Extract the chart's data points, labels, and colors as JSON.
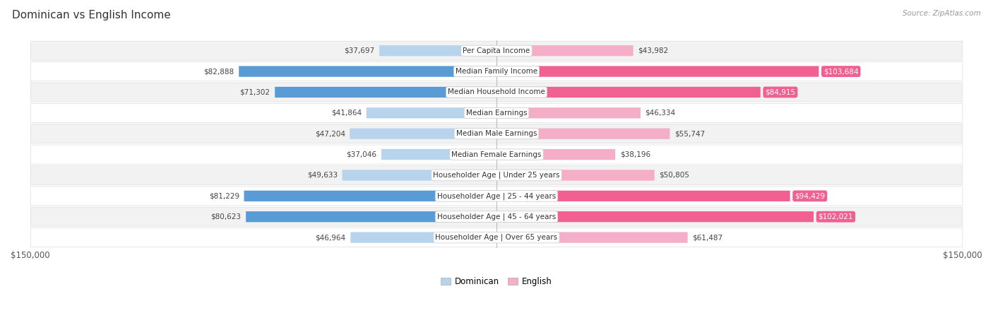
{
  "title": "Dominican vs English Income",
  "source": "Source: ZipAtlas.com",
  "categories": [
    "Per Capita Income",
    "Median Family Income",
    "Median Household Income",
    "Median Earnings",
    "Median Male Earnings",
    "Median Female Earnings",
    "Householder Age | Under 25 years",
    "Householder Age | 25 - 44 years",
    "Householder Age | 45 - 64 years",
    "Householder Age | Over 65 years"
  ],
  "dominican_values": [
    37697,
    82888,
    71302,
    41864,
    47204,
    37046,
    49633,
    81229,
    80623,
    46964
  ],
  "english_values": [
    43982,
    103684,
    84915,
    46334,
    55747,
    38196,
    50805,
    94429,
    102021,
    61487
  ],
  "dominican_labels": [
    "$37,697",
    "$82,888",
    "$71,302",
    "$41,864",
    "$47,204",
    "$37,046",
    "$49,633",
    "$81,229",
    "$80,623",
    "$46,964"
  ],
  "english_labels": [
    "$43,982",
    "$103,684",
    "$84,915",
    "$46,334",
    "$55,747",
    "$38,196",
    "$50,805",
    "$94,429",
    "$102,021",
    "$61,487"
  ],
  "max_value": 150000,
  "dominican_color_light": "#b8d4ec",
  "dominican_color_dark": "#5b9bd5",
  "english_color_light": "#f4aec8",
  "english_color_dark": "#f06090",
  "english_label_bg": "#f06090",
  "dominican_label_bg": "#5b9bd5",
  "row_bg_odd": "#f2f2f2",
  "row_bg_even": "#ffffff",
  "center_line_color": "#bbbbbb",
  "title_fontsize": 11,
  "label_fontsize": 7.5,
  "category_fontsize": 7.5,
  "legend_fontsize": 8.5,
  "axis_label_fontsize": 8.5,
  "dominican_dark_threshold": 70000,
  "english_dark_threshold": 80000
}
